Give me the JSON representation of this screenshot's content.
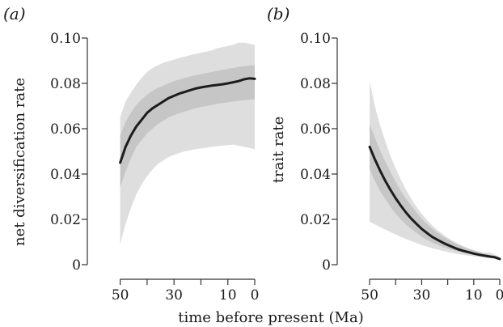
{
  "chart_data": [
    {
      "type": "area",
      "panel_label": "(a)",
      "ylabel": "net diversification rate",
      "xlabel": "",
      "xlim": [
        55,
        0
      ],
      "ylim": [
        0,
        0.1
      ],
      "x_reversed": true,
      "yticks": [
        0,
        0.02,
        0.04,
        0.06,
        0.08,
        0.1
      ],
      "ytick_labels": [
        "0",
        "0.02",
        "0.04",
        "0.06",
        "0.08",
        "0.10"
      ],
      "xticks": [
        50,
        40,
        30,
        20,
        10,
        0
      ],
      "xtick_labels": [
        "50",
        "",
        "30",
        "",
        "10",
        "0"
      ],
      "x": [
        50,
        48,
        46,
        44,
        42,
        40,
        38,
        36,
        34,
        32,
        30,
        28,
        26,
        24,
        22,
        20,
        18,
        16,
        14,
        12,
        10,
        8,
        6,
        4,
        2,
        0
      ],
      "series": [
        {
          "role": "mean",
          "values": [
            0.045,
            0.052,
            0.057,
            0.061,
            0.064,
            0.067,
            0.069,
            0.0705,
            0.072,
            0.0735,
            0.0745,
            0.0755,
            0.0762,
            0.077,
            0.0777,
            0.0782,
            0.0786,
            0.079,
            0.0793,
            0.0796,
            0.08,
            0.0805,
            0.081,
            0.0818,
            0.0822,
            0.082
          ]
        },
        {
          "role": "inner-band-lower",
          "values": [
            0.034,
            0.041,
            0.047,
            0.052,
            0.055,
            0.058,
            0.06,
            0.062,
            0.0635,
            0.065,
            0.066,
            0.0668,
            0.0676,
            0.0683,
            0.069,
            0.0696,
            0.07,
            0.0705,
            0.071,
            0.0713,
            0.0716,
            0.072,
            0.0723,
            0.0726,
            0.0728,
            0.073
          ]
        },
        {
          "role": "inner-band-upper",
          "values": [
            0.057,
            0.063,
            0.067,
            0.0705,
            0.073,
            0.075,
            0.0767,
            0.078,
            0.079,
            0.08,
            0.081,
            0.0817,
            0.0824,
            0.083,
            0.0836,
            0.084,
            0.0846,
            0.085,
            0.0855,
            0.086,
            0.0864,
            0.0868,
            0.0872,
            0.0876,
            0.0878,
            0.088
          ]
        },
        {
          "role": "outer-band-lower",
          "values": [
            0.009,
            0.018,
            0.025,
            0.031,
            0.0355,
            0.039,
            0.042,
            0.0445,
            0.046,
            0.0475,
            0.0485,
            0.0493,
            0.05,
            0.0505,
            0.051,
            0.0513,
            0.0516,
            0.052,
            0.0523,
            0.0525,
            0.0527,
            0.053,
            0.0525,
            0.052,
            0.0515,
            0.051
          ]
        },
        {
          "role": "outer-band-upper",
          "values": [
            0.065,
            0.072,
            0.076,
            0.0795,
            0.0825,
            0.085,
            0.0868,
            0.088,
            0.089,
            0.0898,
            0.0905,
            0.0912,
            0.0918,
            0.0925,
            0.093,
            0.0935,
            0.094,
            0.0945,
            0.0955,
            0.096,
            0.0965,
            0.097,
            0.098,
            0.098,
            0.0975,
            0.097
          ]
        }
      ]
    },
    {
      "type": "area",
      "panel_label": "(b)",
      "ylabel": "trait rate",
      "xlabel": "",
      "xlim": [
        55,
        0
      ],
      "ylim": [
        0,
        0.1
      ],
      "x_reversed": true,
      "yticks": [
        0,
        0.02,
        0.04,
        0.06,
        0.08,
        0.1
      ],
      "ytick_labels": [
        "0",
        "0.02",
        "0.04",
        "0.06",
        "0.08",
        "0.10"
      ],
      "xticks": [
        50,
        40,
        30,
        20,
        10,
        0
      ],
      "xtick_labels": [
        "50",
        "",
        "30",
        "",
        "10",
        "0"
      ],
      "x": [
        50,
        48,
        46,
        44,
        42,
        40,
        38,
        36,
        34,
        32,
        30,
        28,
        26,
        24,
        22,
        20,
        18,
        16,
        14,
        12,
        10,
        8,
        6,
        4,
        2,
        0
      ],
      "series": [
        {
          "role": "mean",
          "values": [
            0.052,
            0.0465,
            0.0415,
            0.037,
            0.033,
            0.0293,
            0.026,
            0.023,
            0.0203,
            0.018,
            0.0158,
            0.014,
            0.0123,
            0.011,
            0.0098,
            0.0087,
            0.0077,
            0.0068,
            0.0061,
            0.0055,
            0.0049,
            0.0044,
            0.004,
            0.0036,
            0.0033,
            0.0025
          ]
        },
        {
          "role": "inner-band-lower",
          "values": [
            0.042,
            0.037,
            0.0325,
            0.029,
            0.0255,
            0.0225,
            0.02,
            0.0177,
            0.0157,
            0.014,
            0.0123,
            0.011,
            0.0098,
            0.0088,
            0.0079,
            0.0071,
            0.0064,
            0.0058,
            0.0053,
            0.0048,
            0.0044,
            0.004,
            0.0036,
            0.0033,
            0.003,
            0.0022
          ]
        },
        {
          "role": "inner-band-upper",
          "values": [
            0.062,
            0.056,
            0.0505,
            0.0455,
            0.041,
            0.0365,
            0.0325,
            0.029,
            0.026,
            0.023,
            0.0203,
            0.018,
            0.016,
            0.0142,
            0.0126,
            0.0112,
            0.0099,
            0.0088,
            0.0078,
            0.0069,
            0.0062,
            0.0055,
            0.0049,
            0.0044,
            0.004,
            0.003
          ]
        },
        {
          "role": "outer-band-lower",
          "values": [
            0.019,
            0.0178,
            0.0166,
            0.0155,
            0.0144,
            0.0133,
            0.0123,
            0.0113,
            0.0104,
            0.0095,
            0.0087,
            0.008,
            0.0073,
            0.0067,
            0.0061,
            0.0056,
            0.0051,
            0.0047,
            0.0043,
            0.004,
            0.0037,
            0.0034,
            0.0031,
            0.0029,
            0.0027,
            0.002
          ]
        },
        {
          "role": "outer-band-upper",
          "values": [
            0.081,
            0.07,
            0.0615,
            0.0545,
            0.048,
            0.0425,
            0.0375,
            0.033,
            0.029,
            0.0255,
            0.0225,
            0.0198,
            0.0174,
            0.0153,
            0.0135,
            0.0119,
            0.0105,
            0.0093,
            0.0082,
            0.0073,
            0.0065,
            0.0058,
            0.0053,
            0.0055,
            0.0045,
            0.0035
          ]
        }
      ]
    }
  ],
  "shared_xlabel": "time before present (Ma)",
  "colors": {
    "outer_band": "#dedede",
    "inner_band": "#c6c6c6",
    "mean_line": "#1c1c1c",
    "axis": "#333333"
  }
}
